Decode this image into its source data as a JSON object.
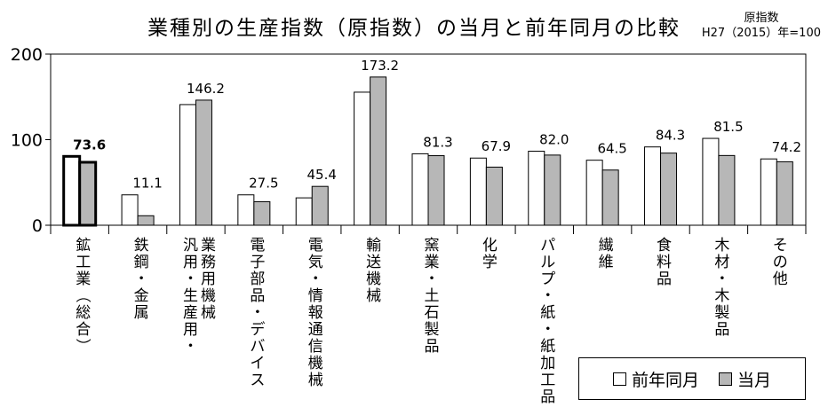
{
  "chart_data": {
    "type": "bar",
    "title": "業種別の生産指数（原指数）の当月と前年同月の比較",
    "base_note": [
      "原指数",
      "H27（2015）年=100"
    ],
    "ylim": [
      0,
      200
    ],
    "yticks": [
      0,
      100,
      200
    ],
    "categories": [
      "鉱工業（総合）",
      "鉄鋼・金属",
      "汎用・生産用・業務用機械",
      "電子部品・デバイス",
      "電気・情報通信機械",
      "輸送機械",
      "窯業・土石製品",
      "化学",
      "パルプ・紙・紙加工品",
      "繊維",
      "食料品",
      "木材・木製品",
      "その他"
    ],
    "category_label_columns": [
      [
        "鉱工業（総合）"
      ],
      [
        "鉄鋼・金属"
      ],
      [
        "汎用・生産用・",
        "業務用機械"
      ],
      [
        "電子部品・デバイス"
      ],
      [
        "電気・情報通信機械"
      ],
      [
        "輸送機械"
      ],
      [
        "窯業・土石製品"
      ],
      [
        "化学"
      ],
      [
        "パルプ・紙・紙加工品"
      ],
      [
        "繊維"
      ],
      [
        "食料品"
      ],
      [
        "木材・木製品"
      ],
      [
        "その他"
      ]
    ],
    "series": [
      {
        "name": "前年同月",
        "color": "#ffffff",
        "values": [
          80.5,
          35.5,
          141,
          35.5,
          32,
          155.5,
          83.5,
          78.5,
          86.5,
          76,
          91.5,
          101.5,
          77.5
        ]
      },
      {
        "name": "当月",
        "color": "#b7b7b7",
        "values": [
          73.6,
          11.1,
          146.2,
          27.5,
          45.4,
          173.2,
          81.3,
          67.9,
          82.0,
          64.5,
          84.3,
          81.5,
          74.2
        ]
      }
    ],
    "data_labels": [
      "73.6",
      "11.1",
      "146.2",
      "27.5",
      "45.4",
      "173.2",
      "81.3",
      "67.9",
      "82.0",
      "64.5",
      "84.3",
      "81.5",
      "74.2"
    ],
    "highlight_category": 0,
    "legend_position": "bottom-right"
  },
  "colors": {
    "axis": "#000000",
    "bar_outline": "#000000",
    "current_fill": "#b7b7b7",
    "prior_fill": "#ffffff"
  }
}
